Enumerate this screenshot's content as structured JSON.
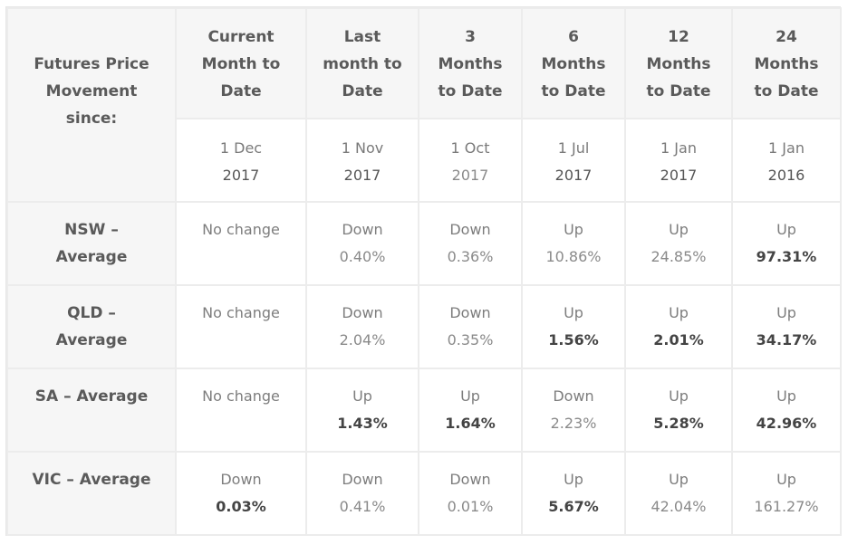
{
  "corner_label": [
    "Futures Price",
    "Movement",
    "since:"
  ],
  "columns": [
    {
      "heading": [
        "Current",
        "Month to",
        "Date"
      ],
      "date": "1 Dec",
      "year": "2017"
    },
    {
      "heading": [
        "Last",
        "month to",
        "Date"
      ],
      "date": "1 Nov",
      "year": "2017"
    },
    {
      "heading": [
        "3",
        "Months",
        "to Date"
      ],
      "date": "1 Oct",
      "year": "2017"
    },
    {
      "heading": [
        "6",
        "Months",
        "to Date"
      ],
      "date": "1 Jul",
      "year": "2017"
    },
    {
      "heading": [
        "12",
        "Months",
        "to Date"
      ],
      "date": "1 Jan",
      "year": "2017"
    },
    {
      "heading": [
        "24",
        "Months",
        "to Date"
      ],
      "date": "1 Jan",
      "year": "2016"
    }
  ],
  "rows": [
    {
      "label": [
        "NSW –",
        "Average"
      ],
      "cells": [
        {
          "dir": "No change",
          "pct": ""
        },
        {
          "dir": "Down",
          "pct": "0.40%"
        },
        {
          "dir": "Down",
          "pct": "0.36%"
        },
        {
          "dir": "Up",
          "pct": "10.86%"
        },
        {
          "dir": "Up",
          "pct": "24.85%"
        },
        {
          "dir": "Up",
          "pct": "97.31%"
        }
      ]
    },
    {
      "label": [
        "QLD –",
        "Average"
      ],
      "cells": [
        {
          "dir": "No change",
          "pct": ""
        },
        {
          "dir": "Down",
          "pct": "2.04%"
        },
        {
          "dir": "Down",
          "pct": "0.35%"
        },
        {
          "dir": "Up",
          "pct": "1.56%"
        },
        {
          "dir": "Up",
          "pct": "2.01%"
        },
        {
          "dir": "Up",
          "pct": "34.17%"
        }
      ]
    },
    {
      "label": [
        "SA – Average"
      ],
      "cells": [
        {
          "dir": "No change",
          "pct": ""
        },
        {
          "dir": "Up",
          "pct": "1.43%"
        },
        {
          "dir": "Up",
          "pct": "1.64%"
        },
        {
          "dir": "Down",
          "pct": "2.23%"
        },
        {
          "dir": "Up",
          "pct": "5.28%"
        },
        {
          "dir": "Up",
          "pct": "42.96%"
        }
      ]
    },
    {
      "label": [
        "VIC – Average"
      ],
      "cells": [
        {
          "dir": "Down",
          "pct": "0.03%"
        },
        {
          "dir": "Down",
          "pct": "0.41%"
        },
        {
          "dir": "Down",
          "pct": "0.01%"
        },
        {
          "dir": "Up",
          "pct": "5.67%"
        },
        {
          "dir": "Up",
          "pct": "42.04%"
        },
        {
          "dir": "Up",
          "pct": "161.27%"
        }
      ]
    }
  ]
}
